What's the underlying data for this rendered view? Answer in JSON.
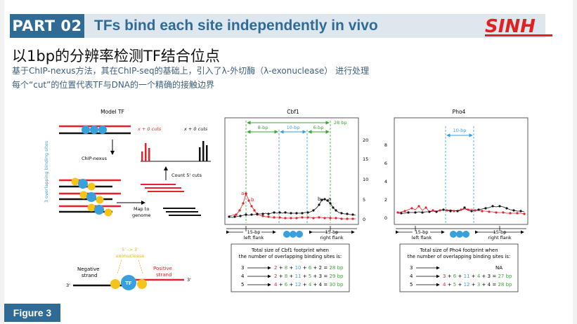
{
  "header": {
    "part_label": "PART 02",
    "title": "TFs bind each site independently in vivo",
    "logo_text": "SINH"
  },
  "slide": {
    "main_title": "以1bp的分辨率检测TF结合位点",
    "subtitle_1": "基于ChIP-nexus方法，其在ChIP-seq的基础上，引入了λ-外切酶（λ-exonuclease） 进行处理",
    "subtitle_2": "每个“cut”的位置代表TF与DNA的一个精确的接触边界",
    "figure_label": "Figure 3"
  },
  "model_panel": {
    "title": "Model TF",
    "cuts_red": "x + 0 cuts",
    "cuts_black": "x + 0 cuts",
    "chipnexus": "ChIP-nexus",
    "count_cuts": "Count 5' cuts",
    "map_to": "Map to",
    "genome": "genome",
    "side_label": "3 overlapping binding sites",
    "exo_label_1": "5' -> 3'",
    "exo_label_2": "exonuclease",
    "neg_strand_1": "Negative",
    "neg_strand_2": "strand",
    "pos_strand_1": "Positive",
    "pos_strand_2": "strand",
    "tf_label": "TF",
    "three_prime": "3'",
    "colors": {
      "red": "#e8202a",
      "blue": "#3aa0dc",
      "yellow": "#f5c418"
    }
  },
  "cbf1_panel": {
    "title": "Cbf1",
    "spans": [
      "8-bp",
      "10-bp",
      "6-bp",
      "28 bp"
    ],
    "y_ticks": [
      "20",
      "15",
      "10",
      "5",
      "0"
    ],
    "peak_labels": [
      "a",
      "b",
      "b",
      "a"
    ],
    "left_flank_1": "15-bp",
    "left_flank_2": "left flank",
    "right_flank_1": "15-bp",
    "right_flank_2": "right flank",
    "footprint_title_1": "Total size of Cbf1 footprint when",
    "footprint_title_2": "the number of overlapping binding sites is:",
    "rows": [
      {
        "n": "3",
        "a": "2",
        "b": "8",
        "c": "10",
        "d": "6",
        "e": "2",
        "total": "28 bp"
      },
      {
        "n": "4",
        "a": "2",
        "b": "8",
        "c": "11",
        "d": "5",
        "e": "3",
        "total": "29 bp"
      },
      {
        "n": "5",
        "a": "4",
        "b": "6",
        "c": "12",
        "d": "4",
        "e": "4",
        "total": "30 bp"
      }
    ]
  },
  "pho4_panel": {
    "title": "Pho4",
    "spans": [
      "10-bp"
    ],
    "y_ticks": [
      "8",
      "6",
      "4",
      "2",
      "0"
    ],
    "left_flank_1": "15-bp",
    "left_flank_2": "left flank",
    "right_flank_1": "15-bp",
    "right_flank_2": "right flank",
    "footprint_title_1": "Total size of Pho4 footprint when",
    "footprint_title_2": "the number of overlapping binding sites is:",
    "rows": [
      {
        "n": "3",
        "na": "NA"
      },
      {
        "n": "4",
        "a": "3",
        "b": "6",
        "c": "11",
        "d": "4",
        "e": "3",
        "total": "27 bp"
      },
      {
        "n": "5",
        "a": "4",
        "b": "5",
        "c": "12",
        "d": "3",
        "e": "4",
        "total": "28 bp"
      }
    ]
  }
}
